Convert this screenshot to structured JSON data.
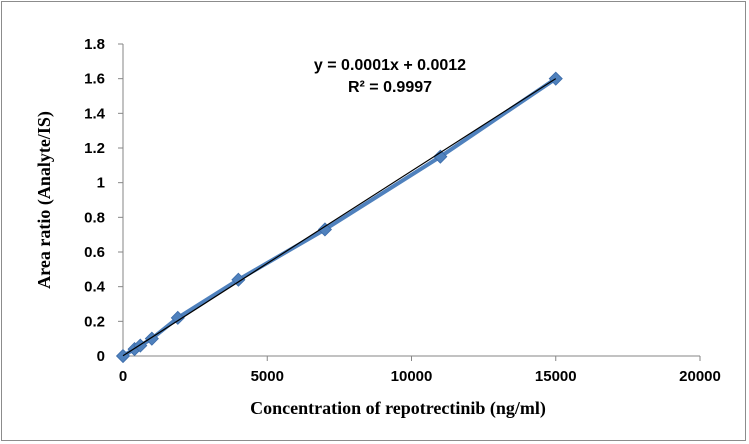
{
  "chart_data": {
    "type": "scatter",
    "xlabel": "Concentration of repotrectinib  (ng/ml)",
    "ylabel": "Area ratio (Analyte/IS)",
    "xlim": [
      0,
      20000
    ],
    "ylim": [
      0,
      1.8
    ],
    "x_ticks": [
      "0",
      "5000",
      "10000",
      "15000",
      "20000"
    ],
    "y_ticks": [
      "0",
      "0.2",
      "0.4",
      "0.6",
      "0.8",
      "1",
      "1.2",
      "1.4",
      "1.6",
      "1.8"
    ],
    "grid": false,
    "series": [
      {
        "marker": "diamond",
        "color": "#4f81bd",
        "points": [
          {
            "x": 0,
            "y": 0.0
          },
          {
            "x": 400,
            "y": 0.04
          },
          {
            "x": 600,
            "y": 0.06
          },
          {
            "x": 1000,
            "y": 0.1
          },
          {
            "x": 1900,
            "y": 0.22
          },
          {
            "x": 4000,
            "y": 0.44
          },
          {
            "x": 7000,
            "y": 0.73
          },
          {
            "x": 11000,
            "y": 1.15
          },
          {
            "x": 15000,
            "y": 1.6
          }
        ]
      }
    ],
    "trendline": {
      "type": "linear",
      "slope": 0.0001066,
      "intercept": 0.0012,
      "color": "#000000",
      "equation": "y = 0.0001x + 0.0012",
      "r_squared": "R² = 0.9997"
    }
  }
}
